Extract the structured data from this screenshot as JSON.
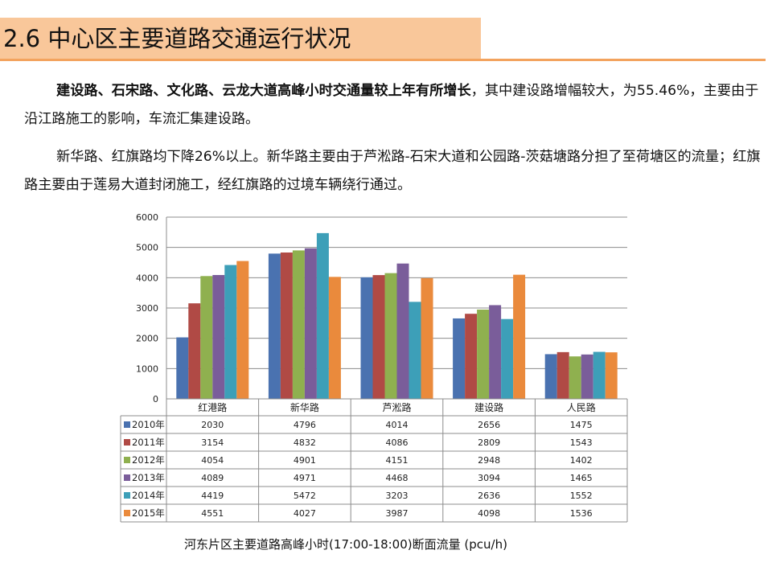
{
  "slide": {
    "title": "2.6 中心区主要道路交通运行状况",
    "para1_bold": "建设路、石宋路、文化路、云龙大道高峰小时交通量较上年有所增长",
    "para1_rest": "，其中建设路增幅较大，为55.46%，主要由于沿江路施工的影响，车流汇集建设路。",
    "para2": "新华路、红旗路均下降26%以上。新华路主要由于芦淞路-石宋大道和公园路-茨菇塘路分担了至荷塘区的流量；红旗路主要由于莲易大道封闭施工，经红旗路的过境车辆绕行通过。",
    "caption": "河东片区主要道路高峰小时(17:00-18:00)断面流量 (pcu/h)"
  },
  "colors": {
    "title_bg": "#f9c79a",
    "title_rule": "#f3a35e",
    "grid": "#8c8c8c",
    "table_border": "#8c8c8c"
  },
  "chart_data": {
    "type": "bar",
    "title": "河东片区主要道路高峰小时(17:00-18:00)断面流量 (pcu/h)",
    "xlabel": "",
    "ylabel": "",
    "ylim": [
      0,
      6000
    ],
    "yticks": [
      0,
      1000,
      2000,
      3000,
      4000,
      5000,
      6000
    ],
    "grid": true,
    "legend": "data-table-left",
    "categories": [
      "红港路",
      "新华路",
      "芦淞路",
      "建设路",
      "人民路"
    ],
    "series": [
      {
        "name": "2010年",
        "color": "#4a72b0",
        "values": [
          2030,
          4796,
          4014,
          2656,
          1475
        ]
      },
      {
        "name": "2011年",
        "color": "#b04a45",
        "values": [
          3154,
          4832,
          4086,
          2809,
          1543
        ]
      },
      {
        "name": "2012年",
        "color": "#8fb04f",
        "values": [
          4054,
          4901,
          4151,
          2948,
          1402
        ]
      },
      {
        "name": "2013年",
        "color": "#7a5d9a",
        "values": [
          4089,
          4971,
          4468,
          3094,
          1465
        ]
      },
      {
        "name": "2014年",
        "color": "#3d9fb8",
        "values": [
          4419,
          5472,
          3203,
          2636,
          1552
        ]
      },
      {
        "name": "2015年",
        "color": "#ea8a3c",
        "values": [
          4551,
          4027,
          3987,
          4098,
          1536
        ]
      }
    ]
  }
}
